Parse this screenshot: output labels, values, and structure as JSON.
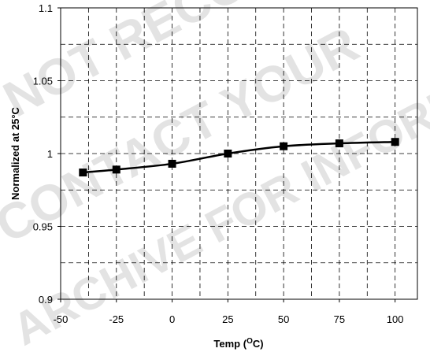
{
  "chart_data": {
    "type": "line",
    "xlabel": "Temp (OC)",
    "ylabel": "Normalized at 25°C",
    "xlim": [
      -50,
      110
    ],
    "ylim": [
      0.9,
      1.1
    ],
    "x_ticks": [
      -50,
      -25,
      0,
      25,
      50,
      75,
      100
    ],
    "y_ticks": [
      0.9,
      0.95,
      1,
      1.05,
      1.1
    ],
    "x_tick_labels": [
      "-50",
      "-25",
      "0",
      "25",
      "50",
      "75",
      "100"
    ],
    "y_tick_labels": [
      "0.9",
      "0.95",
      "1",
      "1.05",
      "1.1"
    ],
    "grid": true,
    "series": [
      {
        "x": [
          -40,
          -25,
          0,
          25,
          50,
          75,
          100
        ],
        "y": [
          0.987,
          0.989,
          0.993,
          1.0,
          1.005,
          1.007,
          1.008
        ],
        "color": "#000000",
        "marker": "square"
      }
    ]
  },
  "watermark": {
    "lines": [
      "NOT RECOMMENDED FOR onsemi",
      "CONTACT YOUR",
      "ARCHIVE FOR INFORMATION"
    ],
    "color": "#999999"
  }
}
